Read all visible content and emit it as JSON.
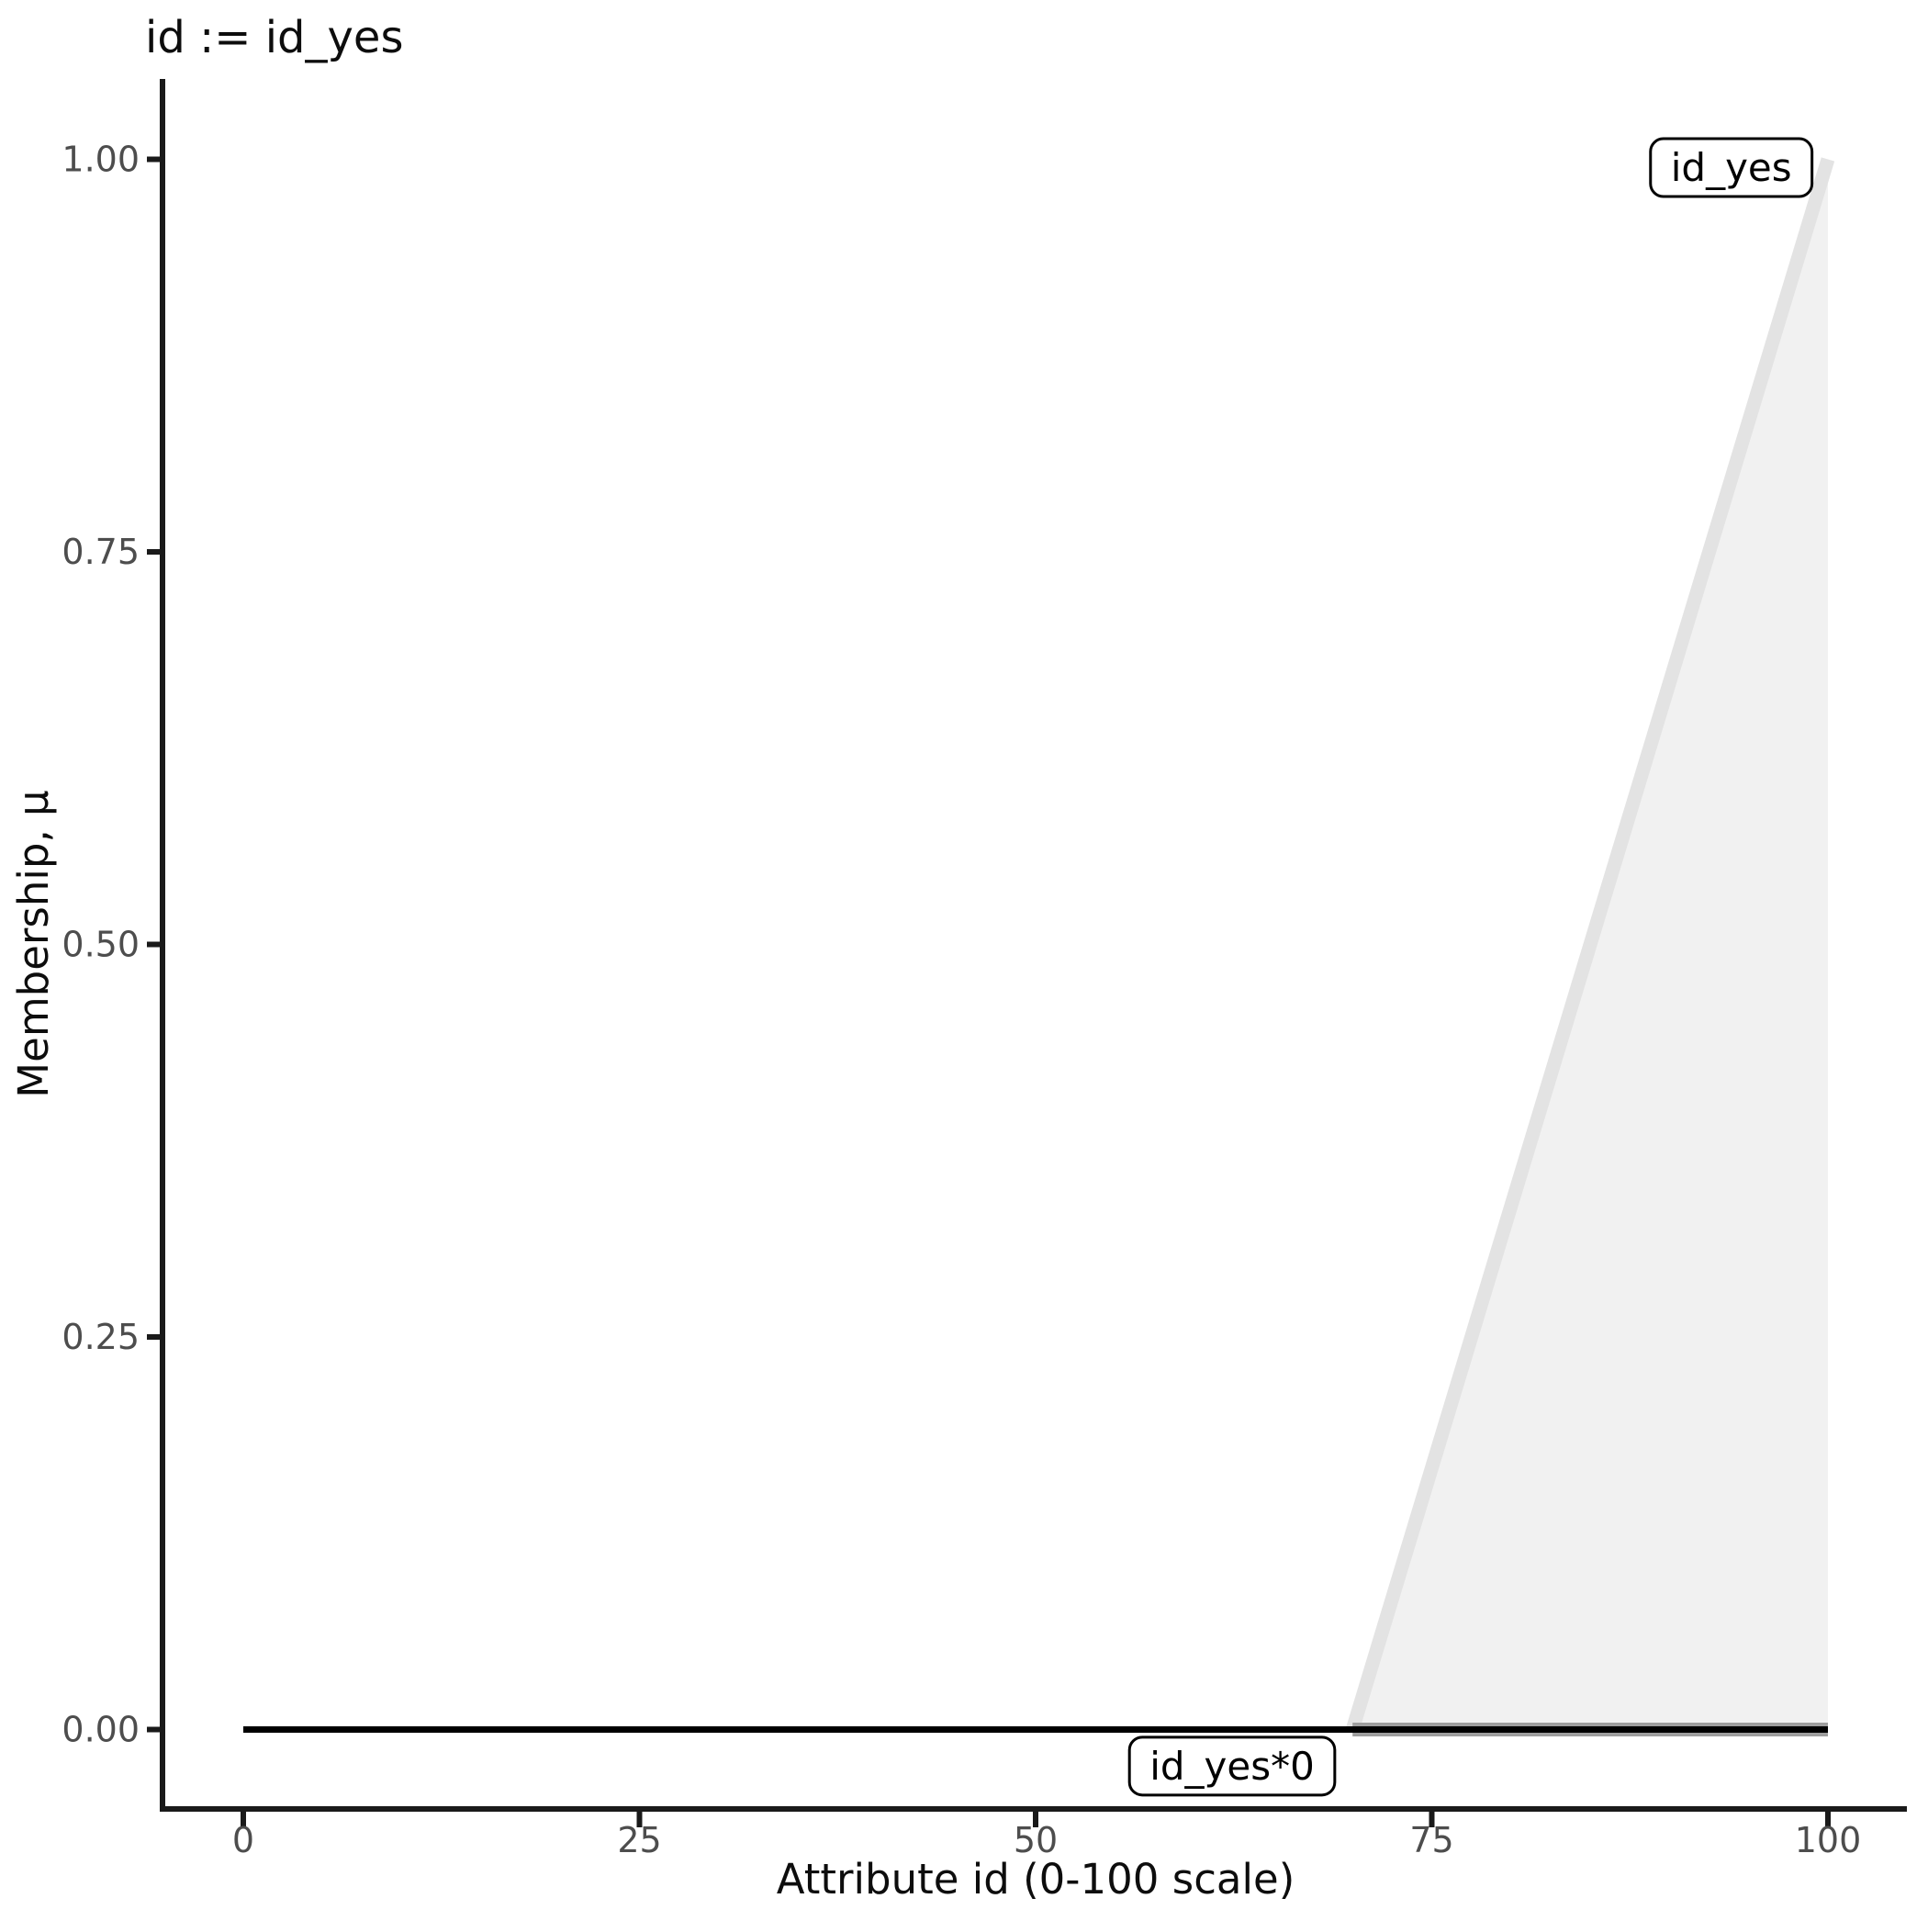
{
  "chart_data": {
    "type": "line",
    "title": "id := id_yes",
    "xlabel": "Attribute id (0-100 scale)",
    "ylabel": "Membership, μ",
    "xlim": [
      0,
      100
    ],
    "ylim": [
      0,
      1
    ],
    "x_ticks": {
      "values": [
        0,
        25,
        50,
        75,
        100
      ],
      "labels": [
        "0",
        "25",
        "50",
        "75",
        "100"
      ]
    },
    "y_ticks": {
      "values": [
        0,
        0.25,
        0.5,
        0.75,
        1.0
      ],
      "labels": [
        "0.00",
        "0.25",
        "0.50",
        "0.75",
        "1.00"
      ]
    },
    "grid": false,
    "legend": "labels-in-plot",
    "series": [
      {
        "name": "id_yes",
        "description": "membership function id_yes: linear rise from (70,0) to (100,1), area under curve filled",
        "points": [
          [
            70,
            0
          ],
          [
            100,
            1
          ]
        ],
        "line_color": "#e3e3e3",
        "line_width": 15,
        "filled": true,
        "fill_color": "#f1f1f1"
      },
      {
        "name": "id_yes-zero-underlay",
        "description": "grey base segment along μ=0 beneath the filled area, x in [70,100]",
        "points": [
          [
            70,
            0
          ],
          [
            100,
            0
          ]
        ],
        "line_color": "#9e9e9e",
        "line_width": 15,
        "filled": false
      },
      {
        "name": "id_yes*0",
        "description": "result of id_yes*0: constant membership 0 over [0,100]",
        "points": [
          [
            0,
            0
          ],
          [
            100,
            0
          ]
        ],
        "line_color": "#000000",
        "line_width": 7,
        "filled": false
      }
    ],
    "annotations": [
      {
        "text": "id_yes",
        "x": 93.9,
        "y": 0.995
      },
      {
        "text": "id_yes*0",
        "x": 62.4,
        "y": -0.023
      }
    ]
  },
  "colors": {
    "axis_line": "#1a1a1a",
    "tick_mark": "#1a1a1a",
    "tick_label": "#4d4d4d",
    "title_text": "#0d0d0d",
    "annotation_border": "#000000",
    "annotation_fill": "#ffffff",
    "background": "#ffffff"
  }
}
